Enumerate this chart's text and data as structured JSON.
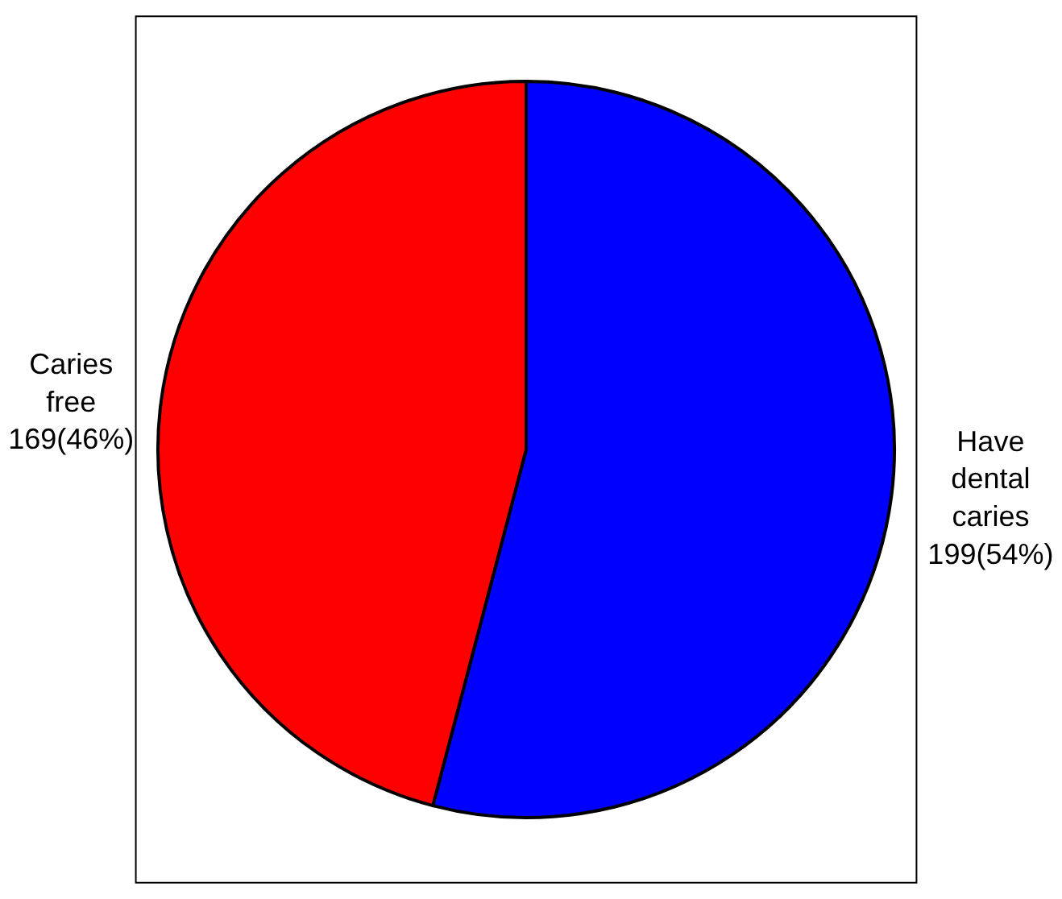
{
  "chart_data": {
    "type": "pie",
    "categories": [
      "Have dental caries",
      "Caries free"
    ],
    "values": [
      199,
      169
    ],
    "colors": [
      "#0000ff",
      "#ff0000"
    ],
    "value_labels": [
      "199(54%)",
      "169(46%)"
    ],
    "legend": false
  }
}
